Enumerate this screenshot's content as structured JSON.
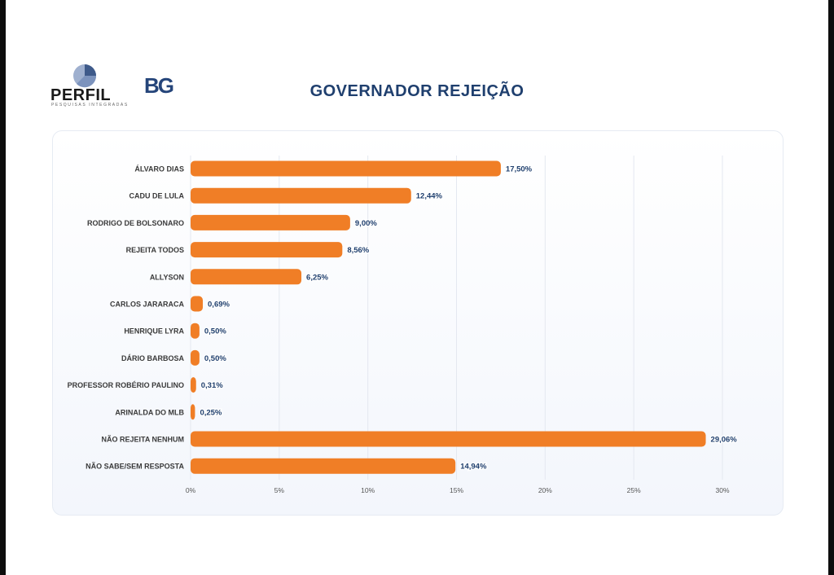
{
  "header": {
    "title": "GOVERNADOR REJEIÇÃO",
    "logo_perfil": "PERFIL",
    "logo_perfil_tag": "PESQUISAS INTEGRADAS",
    "logo_bg": "BG"
  },
  "colors": {
    "bar": "#f07e26",
    "title": "#1f3f6e",
    "value_label": "#1f3f6e",
    "label": "#3a3a3a"
  },
  "chart_data": {
    "type": "bar",
    "orientation": "horizontal",
    "title": "GOVERNADOR REJEIÇÃO",
    "categories": [
      "ÁLVARO DIAS",
      "CADU DE LULA",
      "RODRIGO DE BOLSONARO",
      "REJEITA TODOS",
      "ALLYSON",
      "CARLOS JARARACA",
      "HENRIQUE LYRA",
      "DÁRIO BARBOSA",
      "PROFESSOR ROBÉRIO PAULINO",
      "ARINALDA DO MLB",
      "NÃO REJEITA NENHUM",
      "NÃO SABE/SEM RESPOSTA"
    ],
    "values": [
      17.5,
      12.44,
      9.0,
      8.56,
      6.25,
      0.69,
      0.5,
      0.5,
      0.31,
      0.25,
      29.06,
      14.94
    ],
    "value_labels": [
      "17,50%",
      "12,44%",
      "9,00%",
      "8,56%",
      "6,25%",
      "0,69%",
      "0,50%",
      "0,50%",
      "0,31%",
      "0,25%",
      "29,06%",
      "14,94%"
    ],
    "xticks": [
      0,
      5,
      10,
      15,
      20,
      25,
      30
    ],
    "xtick_labels": [
      "0%",
      "5%",
      "10%",
      "15%",
      "20%",
      "25%",
      "30%"
    ],
    "xlim": [
      0,
      30
    ],
    "grid": true,
    "legend": "none"
  }
}
